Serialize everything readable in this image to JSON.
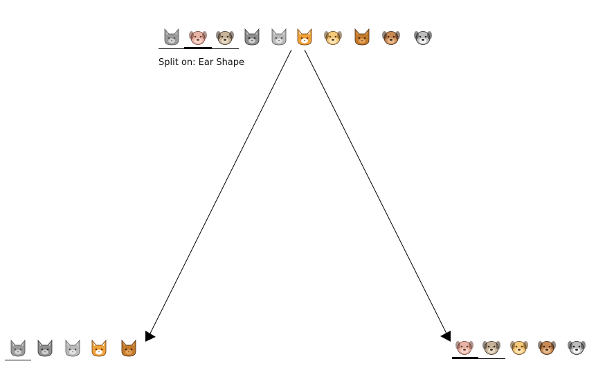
{
  "root": {
    "animals": [
      {
        "kind": "cat",
        "icon": "gray-cat-icon",
        "colors": {
          "fur": "#9a9a9a",
          "inner": "#d0d0d0",
          "dark": "#555555"
        }
      },
      {
        "kind": "dog",
        "icon": "pink-dog-icon",
        "colors": {
          "fur": "#e8b4a6",
          "inner": "#f6d3c8",
          "dark": "#6b3b2e"
        }
      },
      {
        "kind": "dog",
        "icon": "pug-dog-icon",
        "colors": {
          "fur": "#c8b49a",
          "inner": "#e7d9c4",
          "dark": "#3a2c22"
        }
      },
      {
        "kind": "cat",
        "icon": "gray-wolf-cat-icon",
        "colors": {
          "fur": "#8e8e8e",
          "inner": "#cfcfcf",
          "dark": "#333333"
        }
      },
      {
        "kind": "cat",
        "icon": "silver-cat-icon",
        "colors": {
          "fur": "#b9b9b9",
          "inner": "#e2e2e2",
          "dark": "#555555"
        }
      },
      {
        "kind": "cat",
        "icon": "orange-cat-icon",
        "colors": {
          "fur": "#f0a23a",
          "inner": "#ffffff",
          "dark": "#6b3b10"
        }
      },
      {
        "kind": "dog",
        "icon": "yellow-dog-icon",
        "colors": {
          "fur": "#f5c97a",
          "inner": "#fde4b3",
          "dark": "#5a3a12"
        }
      },
      {
        "kind": "cat",
        "icon": "brown-cat-icon",
        "colors": {
          "fur": "#c27a2c",
          "inner": "#e3a25a",
          "dark": "#4a2a0c"
        }
      },
      {
        "kind": "dog",
        "icon": "brown-dog-icon",
        "colors": {
          "fur": "#c98a55",
          "inner": "#e8b88a",
          "dark": "#3a2212"
        }
      },
      {
        "kind": "dog",
        "icon": "spotted-dog-icon",
        "colors": {
          "fur": "#bdbdbd",
          "inner": "#f2f2f2",
          "dark": "#222222"
        }
      }
    ]
  },
  "split_label": "Split on: Ear Shape",
  "left_child": {
    "animals": [
      {
        "kind": "cat",
        "icon": "gray-cat-icon",
        "colors": {
          "fur": "#9a9a9a",
          "inner": "#d0d0d0",
          "dark": "#555555"
        }
      },
      {
        "kind": "cat",
        "icon": "gray-wolf-cat-icon",
        "colors": {
          "fur": "#8e8e8e",
          "inner": "#cfcfcf",
          "dark": "#333333"
        }
      },
      {
        "kind": "cat",
        "icon": "silver-cat-icon",
        "colors": {
          "fur": "#b9b9b9",
          "inner": "#e2e2e2",
          "dark": "#555555"
        }
      },
      {
        "kind": "cat",
        "icon": "orange-cat-icon",
        "colors": {
          "fur": "#f0a23a",
          "inner": "#ffffff",
          "dark": "#6b3b10"
        }
      },
      {
        "kind": "cat",
        "icon": "brown-cat-icon",
        "colors": {
          "fur": "#c27a2c",
          "inner": "#e3a25a",
          "dark": "#4a2a0c"
        }
      }
    ]
  },
  "right_child": {
    "animals": [
      {
        "kind": "dog",
        "icon": "pink-dog-icon",
        "colors": {
          "fur": "#e8b4a6",
          "inner": "#f6d3c8",
          "dark": "#6b3b2e"
        }
      },
      {
        "kind": "dog",
        "icon": "pug-dog-icon",
        "colors": {
          "fur": "#c8b49a",
          "inner": "#e7d9c4",
          "dark": "#3a2c22"
        }
      },
      {
        "kind": "dog",
        "icon": "yellow-dog-icon",
        "colors": {
          "fur": "#f5c97a",
          "inner": "#fde4b3",
          "dark": "#5a3a12"
        }
      },
      {
        "kind": "dog",
        "icon": "brown-dog-icon",
        "colors": {
          "fur": "#c98a55",
          "inner": "#e8b88a",
          "dark": "#3a2212"
        }
      },
      {
        "kind": "dog",
        "icon": "spotted-dog-icon",
        "colors": {
          "fur": "#bdbdbd",
          "inner": "#f2f2f2",
          "dark": "#222222"
        }
      }
    ]
  },
  "colors": {
    "line": "#000000",
    "text": "#111111",
    "background": "#ffffff"
  }
}
